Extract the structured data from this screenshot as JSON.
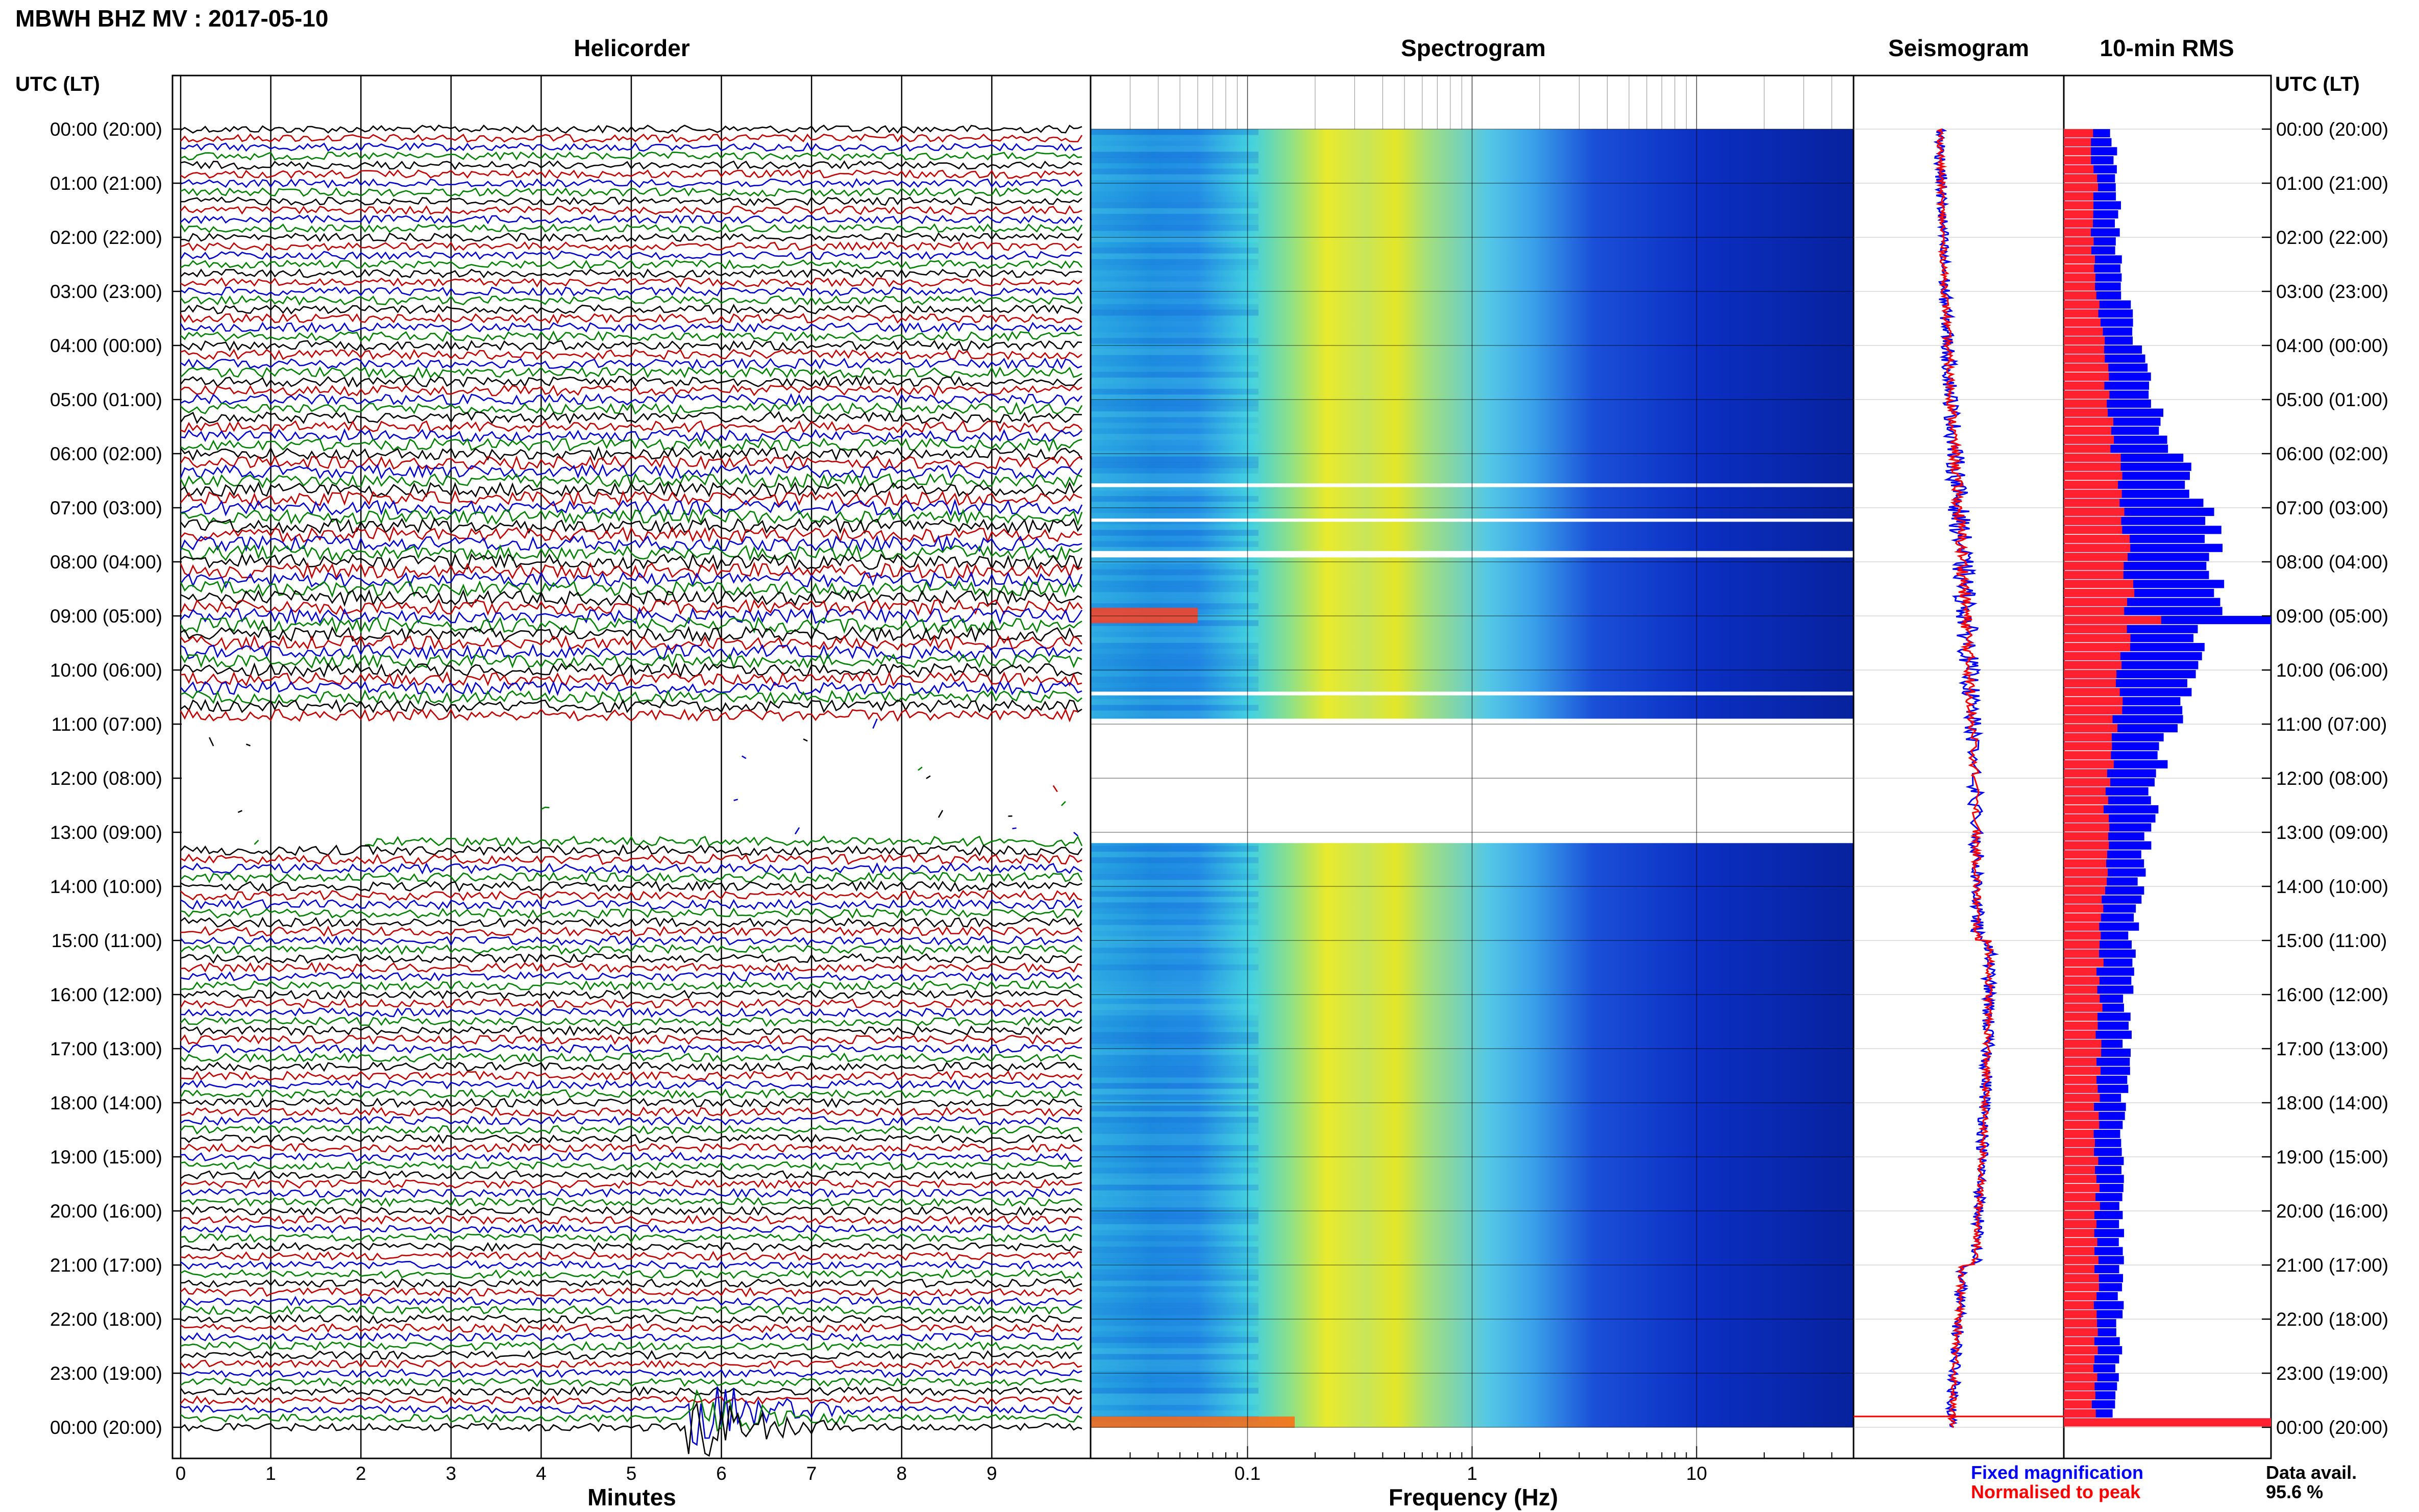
{
  "header": {
    "title": "MBWH BHZ MV : 2017-05-10"
  },
  "panels": {
    "helicorder": "Helicorder",
    "spectrogram": "Spectrogram",
    "seismogram": "Seismogram",
    "rms": "10-min RMS"
  },
  "axes": {
    "left_time_header": "UTC (LT)",
    "right_time_header": "UTC (LT)",
    "time_labels": [
      "00:00 (20:00)",
      "01:00 (21:00)",
      "02:00 (22:00)",
      "03:00 (23:00)",
      "04:00 (00:00)",
      "05:00 (01:00)",
      "06:00 (02:00)",
      "07:00 (03:00)",
      "08:00 (04:00)",
      "09:00 (05:00)",
      "10:00 (06:00)",
      "11:00 (07:00)",
      "12:00 (08:00)",
      "13:00 (09:00)",
      "14:00 (10:00)",
      "15:00 (11:00)",
      "16:00 (12:00)",
      "17:00 (13:00)",
      "18:00 (14:00)",
      "19:00 (15:00)",
      "20:00 (16:00)",
      "21:00 (17:00)",
      "22:00 (18:00)",
      "23:00 (19:00)",
      "00:00 (20:00)"
    ],
    "minutes_title": "Minutes",
    "minutes_ticks": [
      "0",
      "1",
      "2",
      "3",
      "4",
      "5",
      "6",
      "7",
      "8",
      "9"
    ],
    "frequency_title": "Frequency (Hz)",
    "frequency_ticks": [
      "0.1",
      "1",
      "10"
    ]
  },
  "legend": {
    "fixed_label": "Fixed magnification",
    "fixed_color": "#0000ff",
    "normalised_label": "Normalised to peak",
    "normalised_color": "#ff0000",
    "data_avail_label": "Data avail.",
    "data_avail_value": "95.6 %"
  },
  "colors": {
    "helicorder_traces": [
      "#000000",
      "#c00000",
      "#0000cc",
      "#008000"
    ],
    "rms_fixed": "#0000ff",
    "rms_normalised": "#ff2030"
  },
  "chart_data": [
    {
      "type": "line",
      "panel": "Helicorder",
      "xlabel": "Minutes",
      "xlim": [
        0,
        10
      ],
      "trace_interval_minutes": 10,
      "hours_start_utc": 0,
      "hours_end_utc": 24,
      "gaps_utc_hours": [
        [
          11.0,
          13.2
        ]
      ],
      "events": [
        {
          "time_utc": "23:50",
          "minute": 5.7,
          "note": "large transient"
        },
        {
          "time_utc": "09:00",
          "note": "elevated amplitude"
        }
      ]
    },
    {
      "type": "heatmap",
      "panel": "Spectrogram",
      "xlabel": "Frequency (Hz)",
      "x_scale": "log",
      "xlim": [
        0.02,
        50
      ],
      "ylim_utc_hours": [
        0,
        24
      ],
      "gap_utc_hours": [
        [
          10.9,
          13.2
        ]
      ],
      "energy_band_hz": [
        0.15,
        0.5
      ]
    },
    {
      "type": "line",
      "panel": "Seismogram",
      "series": [
        {
          "name": "Fixed magnification",
          "color": "#0000ff"
        },
        {
          "name": "Normalised to peak",
          "color": "#ff0000"
        }
      ]
    },
    {
      "type": "bar",
      "panel": "10-min RMS",
      "orientation": "horizontal",
      "bin_minutes": 10,
      "hourly_fixed": [
        0.24,
        0.27,
        0.26,
        0.29,
        0.36,
        0.44,
        0.55,
        0.7,
        0.73,
        0.72,
        0.6,
        0.52,
        0.45,
        0.4,
        0.36,
        0.33,
        0.31,
        0.3,
        0.29,
        0.28,
        0.27,
        0.27,
        0.27,
        0.26,
        0.24
      ],
      "hourly_normalised": [
        0.14,
        0.15,
        0.14,
        0.16,
        0.19,
        0.22,
        0.25,
        0.29,
        0.31,
        0.32,
        0.28,
        0.25,
        0.22,
        0.2,
        0.19,
        0.18,
        0.17,
        0.17,
        0.16,
        0.16,
        0.16,
        0.16,
        0.16,
        0.15,
        0.14
      ],
      "peaks": [
        {
          "time_utc": "09:00",
          "fixed": 1.0,
          "normalised": 0.47
        },
        {
          "time_utc": "23:50",
          "fixed": 1.0,
          "normalised": 1.0
        }
      ],
      "series": [
        {
          "name": "Fixed magnification",
          "color": "#0000ff"
        },
        {
          "name": "Normalised to peak",
          "color": "#ff0000"
        }
      ]
    }
  ]
}
